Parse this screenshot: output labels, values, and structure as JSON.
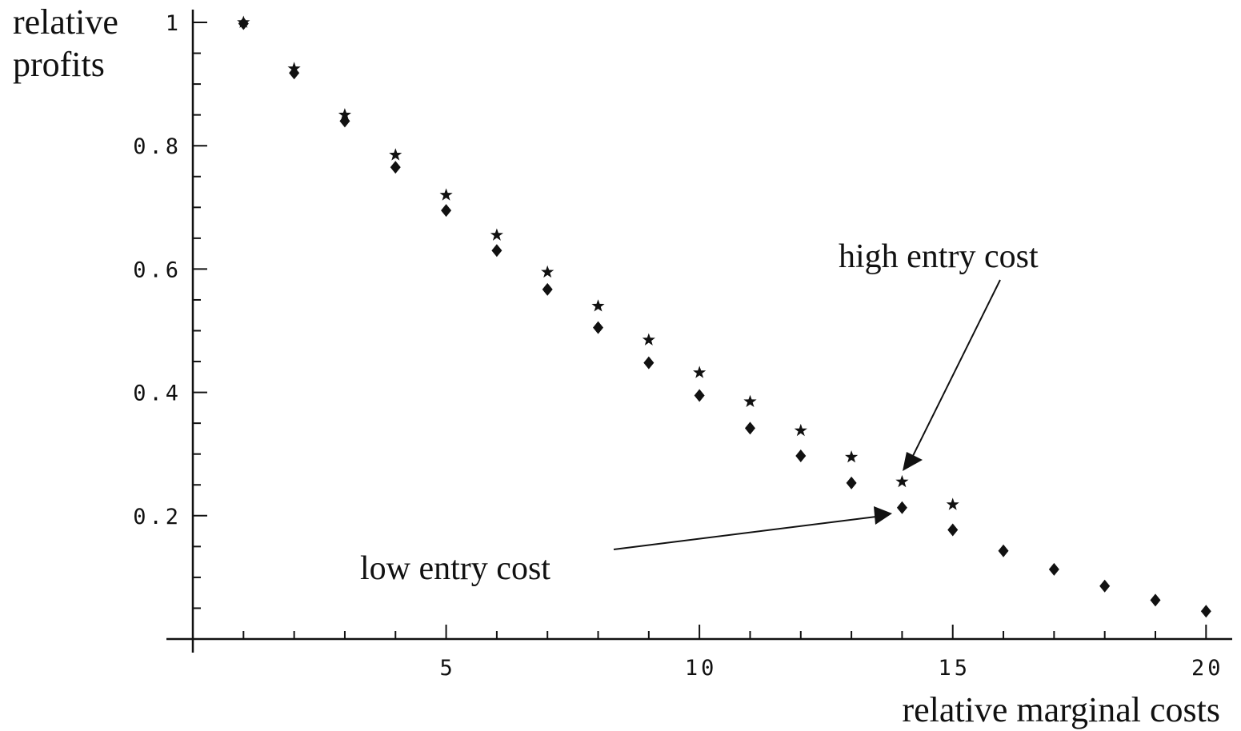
{
  "chart_data": {
    "type": "scatter",
    "title": "",
    "xlabel": "relative marginal costs",
    "ylabel_lines": [
      "relative",
      "profits"
    ],
    "xlim": [
      0.0,
      20.1
    ],
    "ylim": [
      0.0,
      1.0
    ],
    "x_ticks": [
      {
        "value": 5,
        "label": "5"
      },
      {
        "value": 10,
        "label": "10"
      },
      {
        "value": 15,
        "label": "15"
      },
      {
        "value": 20,
        "label": "20"
      }
    ],
    "x_minor_ticks": [
      1,
      2,
      3,
      4,
      6,
      7,
      8,
      9,
      11,
      12,
      13,
      14,
      16,
      17,
      18,
      19
    ],
    "y_ticks": [
      {
        "value": 0.2,
        "label": "0.2"
      },
      {
        "value": 0.4,
        "label": "0.4"
      },
      {
        "value": 0.6,
        "label": "0.6"
      },
      {
        "value": 0.8,
        "label": "0.8"
      },
      {
        "value": 1.0,
        "label": "1"
      }
    ],
    "y_minor_ticks": [
      0.05,
      0.1,
      0.15,
      0.25,
      0.3,
      0.35,
      0.45,
      0.5,
      0.55,
      0.65,
      0.7,
      0.75,
      0.85,
      0.9,
      0.95
    ],
    "grid": false,
    "series": [
      {
        "marker": "star",
        "x": [
          1,
          2,
          3,
          4,
          5,
          6,
          7,
          8,
          9,
          10,
          11,
          12,
          13,
          14,
          15
        ],
        "y": [
          1.0,
          0.925,
          0.85,
          0.785,
          0.72,
          0.655,
          0.595,
          0.54,
          0.485,
          0.432,
          0.385,
          0.338,
          0.295,
          0.255,
          0.218
        ]
      },
      {
        "marker": "diamond",
        "x": [
          1,
          2,
          3,
          4,
          5,
          6,
          7,
          8,
          9,
          10,
          11,
          12,
          13,
          14,
          15,
          16,
          17,
          18,
          19,
          20
        ],
        "y": [
          0.998,
          0.918,
          0.84,
          0.765,
          0.695,
          0.63,
          0.567,
          0.505,
          0.448,
          0.395,
          0.342,
          0.297,
          0.253,
          0.213,
          0.177,
          0.143,
          0.113,
          0.086,
          0.063,
          0.045
        ]
      }
    ],
    "annotations": [
      {
        "text": "high entry cost",
        "points_to": {
          "x": 13.8,
          "y": 0.275
        }
      },
      {
        "text": "low entry cost",
        "points_to": {
          "x": 13.7,
          "y": 0.205
        }
      }
    ]
  }
}
